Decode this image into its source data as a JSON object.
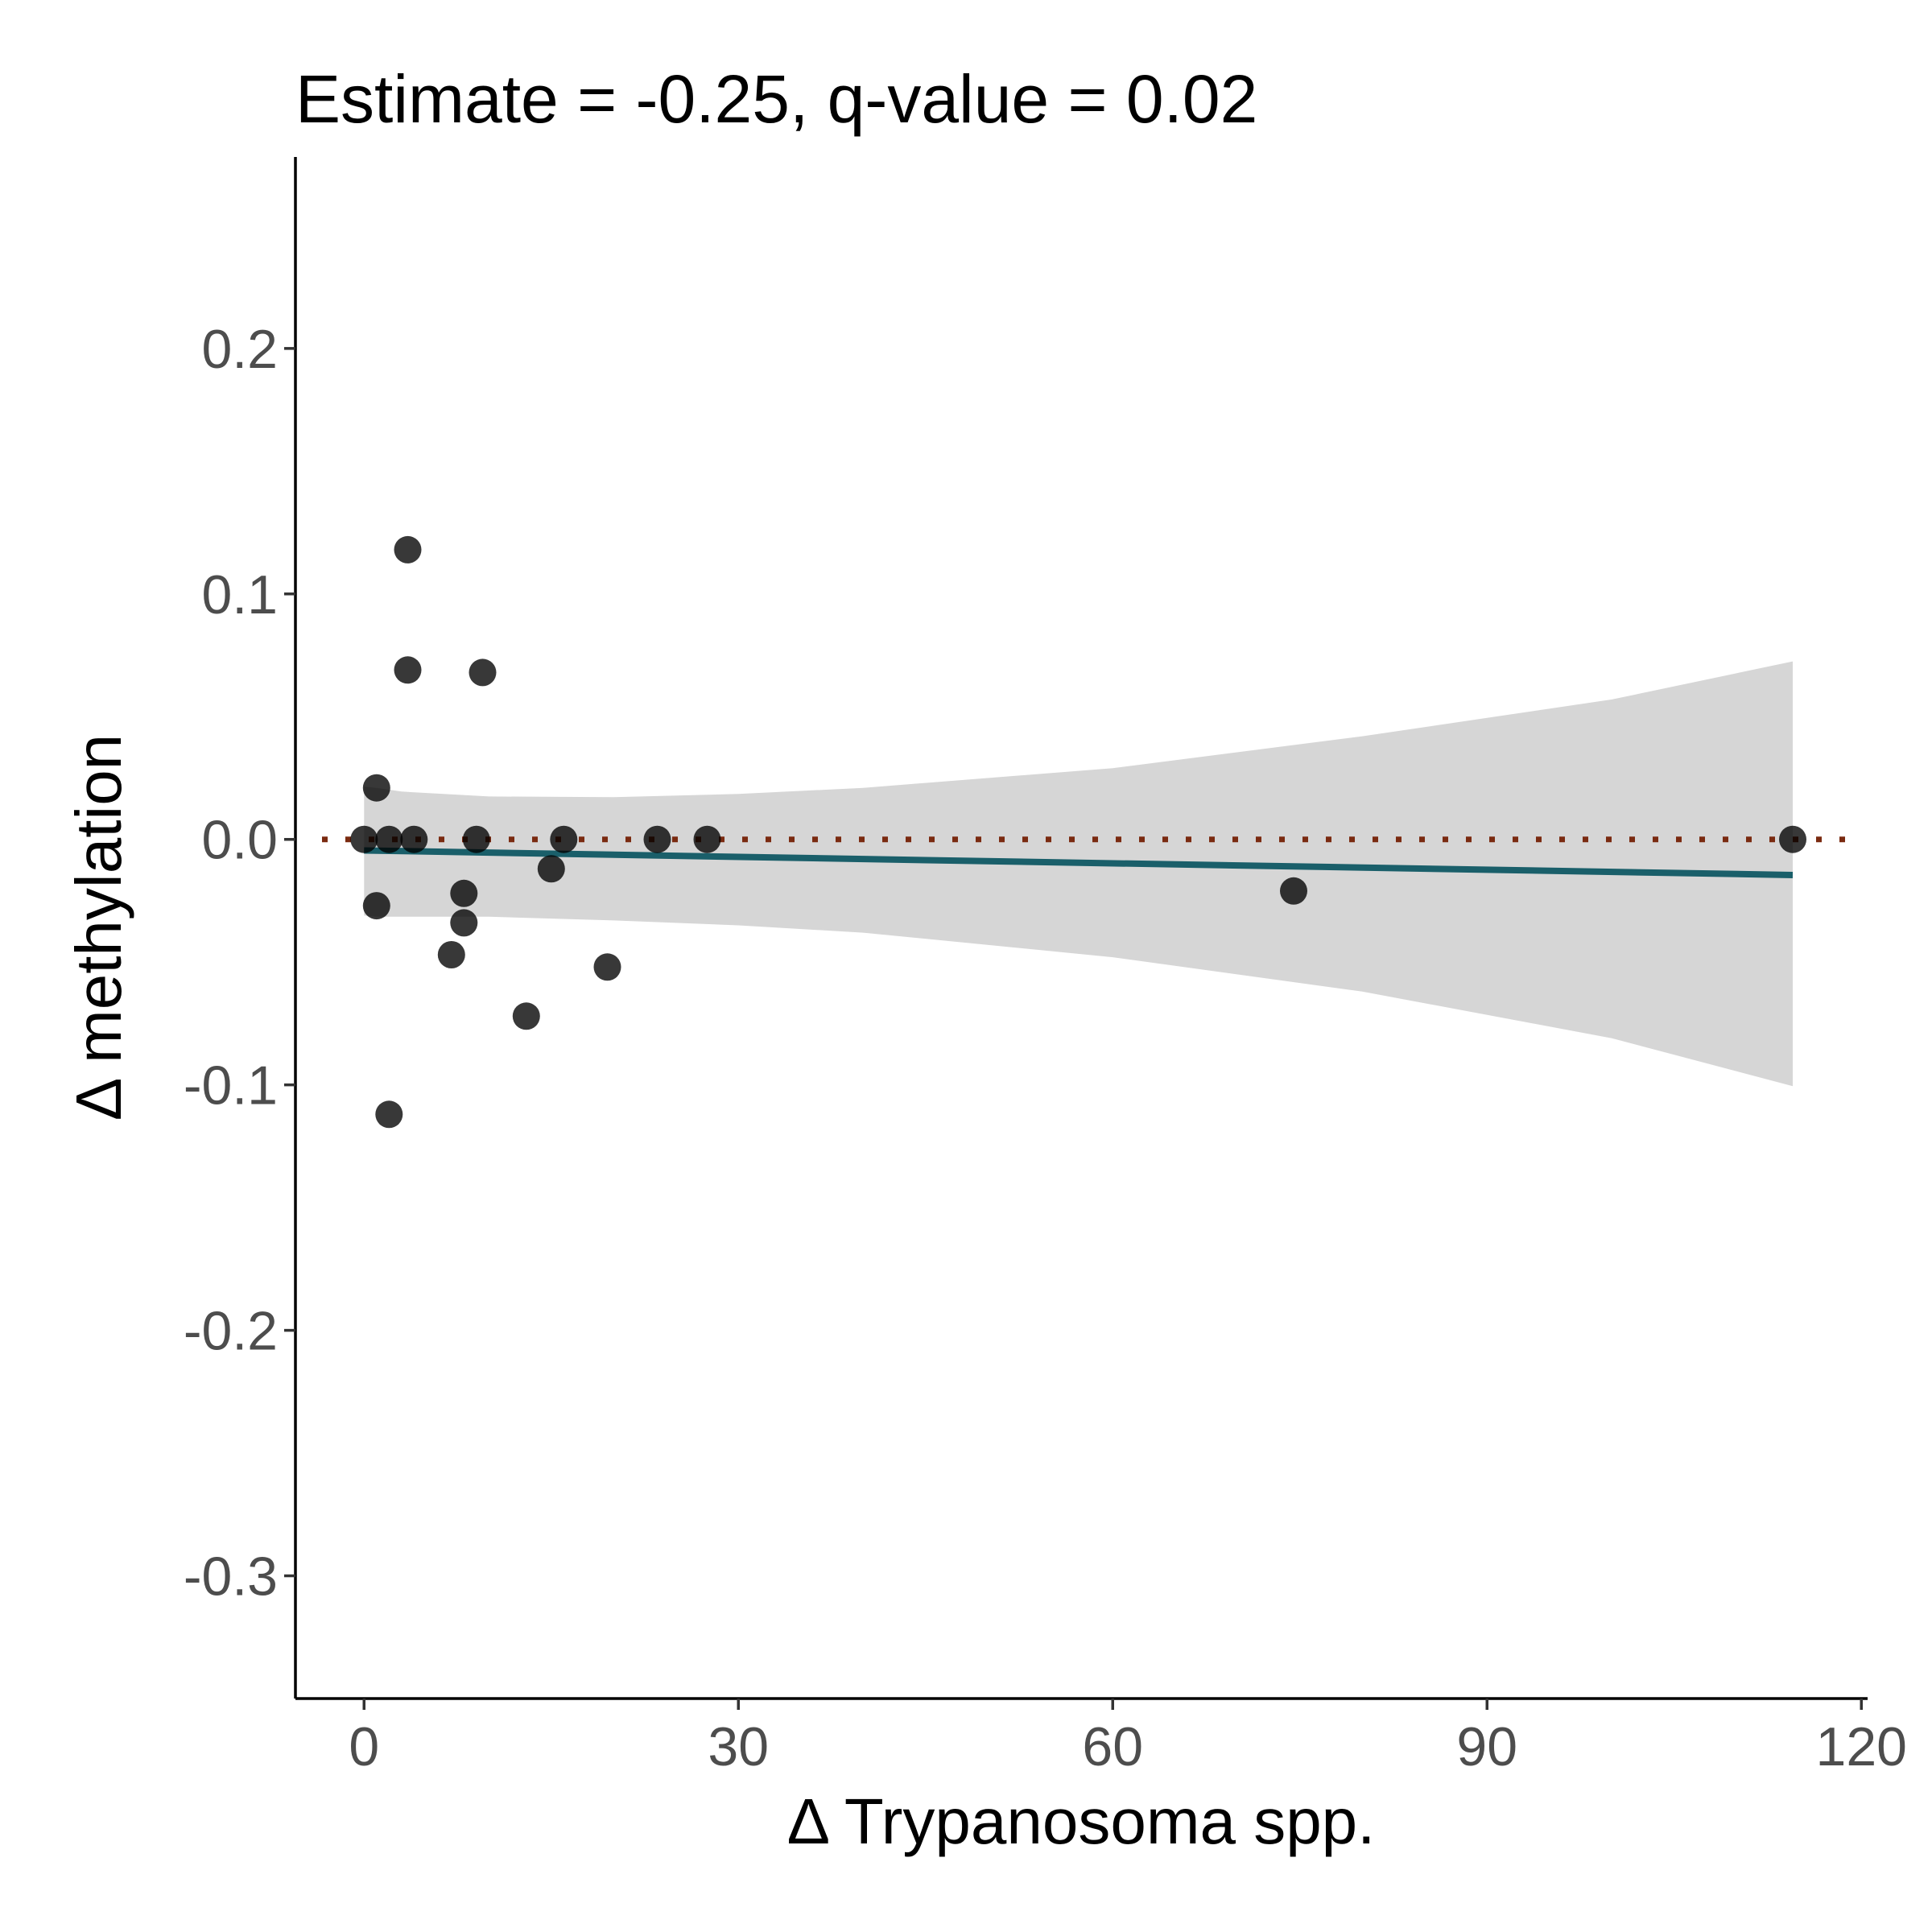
{
  "chart_data": {
    "type": "scatter",
    "title": "Estimate = -0.25, q-value = 0.02",
    "xlabel": "Δ Trypanosoma spp.",
    "ylabel": "Δ methylation",
    "xlim": [
      -5.5,
      120.5
    ],
    "ylim": [
      -0.35,
      0.278
    ],
    "x_ticks": [
      0,
      30,
      60,
      90,
      120
    ],
    "x_tick_labels": [
      "0",
      "30",
      "60",
      "90",
      "120"
    ],
    "y_ticks": [
      -0.3,
      -0.2,
      -0.1,
      0.0,
      0.1,
      0.2
    ],
    "y_tick_labels": [
      "-0.3",
      "-0.2",
      "-0.1",
      "0.0",
      "0.1",
      "0.2"
    ],
    "grid": false,
    "reference_line": {
      "y": 0,
      "style": "dotted",
      "color": "#7a2a10"
    },
    "regression_line": {
      "x": [
        0,
        114.5
      ],
      "y": [
        -0.0045,
        -0.0145
      ],
      "color": "#1a5f6a"
    },
    "confidence_band": {
      "color": "#d6d6d6",
      "x": [
        0,
        1,
        3,
        10,
        20,
        30,
        40,
        60,
        80,
        100,
        114.5
      ],
      "upper": [
        0.0215,
        0.021,
        0.0195,
        0.0175,
        0.0172,
        0.0185,
        0.021,
        0.029,
        0.042,
        0.057,
        0.0725
      ],
      "lower": [
        -0.031,
        -0.0315,
        -0.0315,
        -0.0315,
        -0.033,
        -0.035,
        -0.038,
        -0.048,
        -0.062,
        -0.081,
        -0.1005
      ]
    },
    "points": {
      "color": "#000000",
      "x": [
        0,
        1,
        1,
        2,
        2,
        3.5,
        3.5,
        4,
        7,
        8,
        8,
        9,
        9.5,
        13,
        15,
        16,
        19.5,
        23.5,
        27.5,
        74.5,
        114.5
      ],
      "y": [
        0.0,
        0.021,
        -0.027,
        0.0,
        -0.112,
        0.118,
        0.069,
        0.0,
        -0.047,
        -0.034,
        -0.022,
        0.0,
        0.068,
        -0.072,
        -0.012,
        0.0,
        -0.052,
        0.0,
        0.0,
        -0.021,
        0.0
      ]
    }
  }
}
